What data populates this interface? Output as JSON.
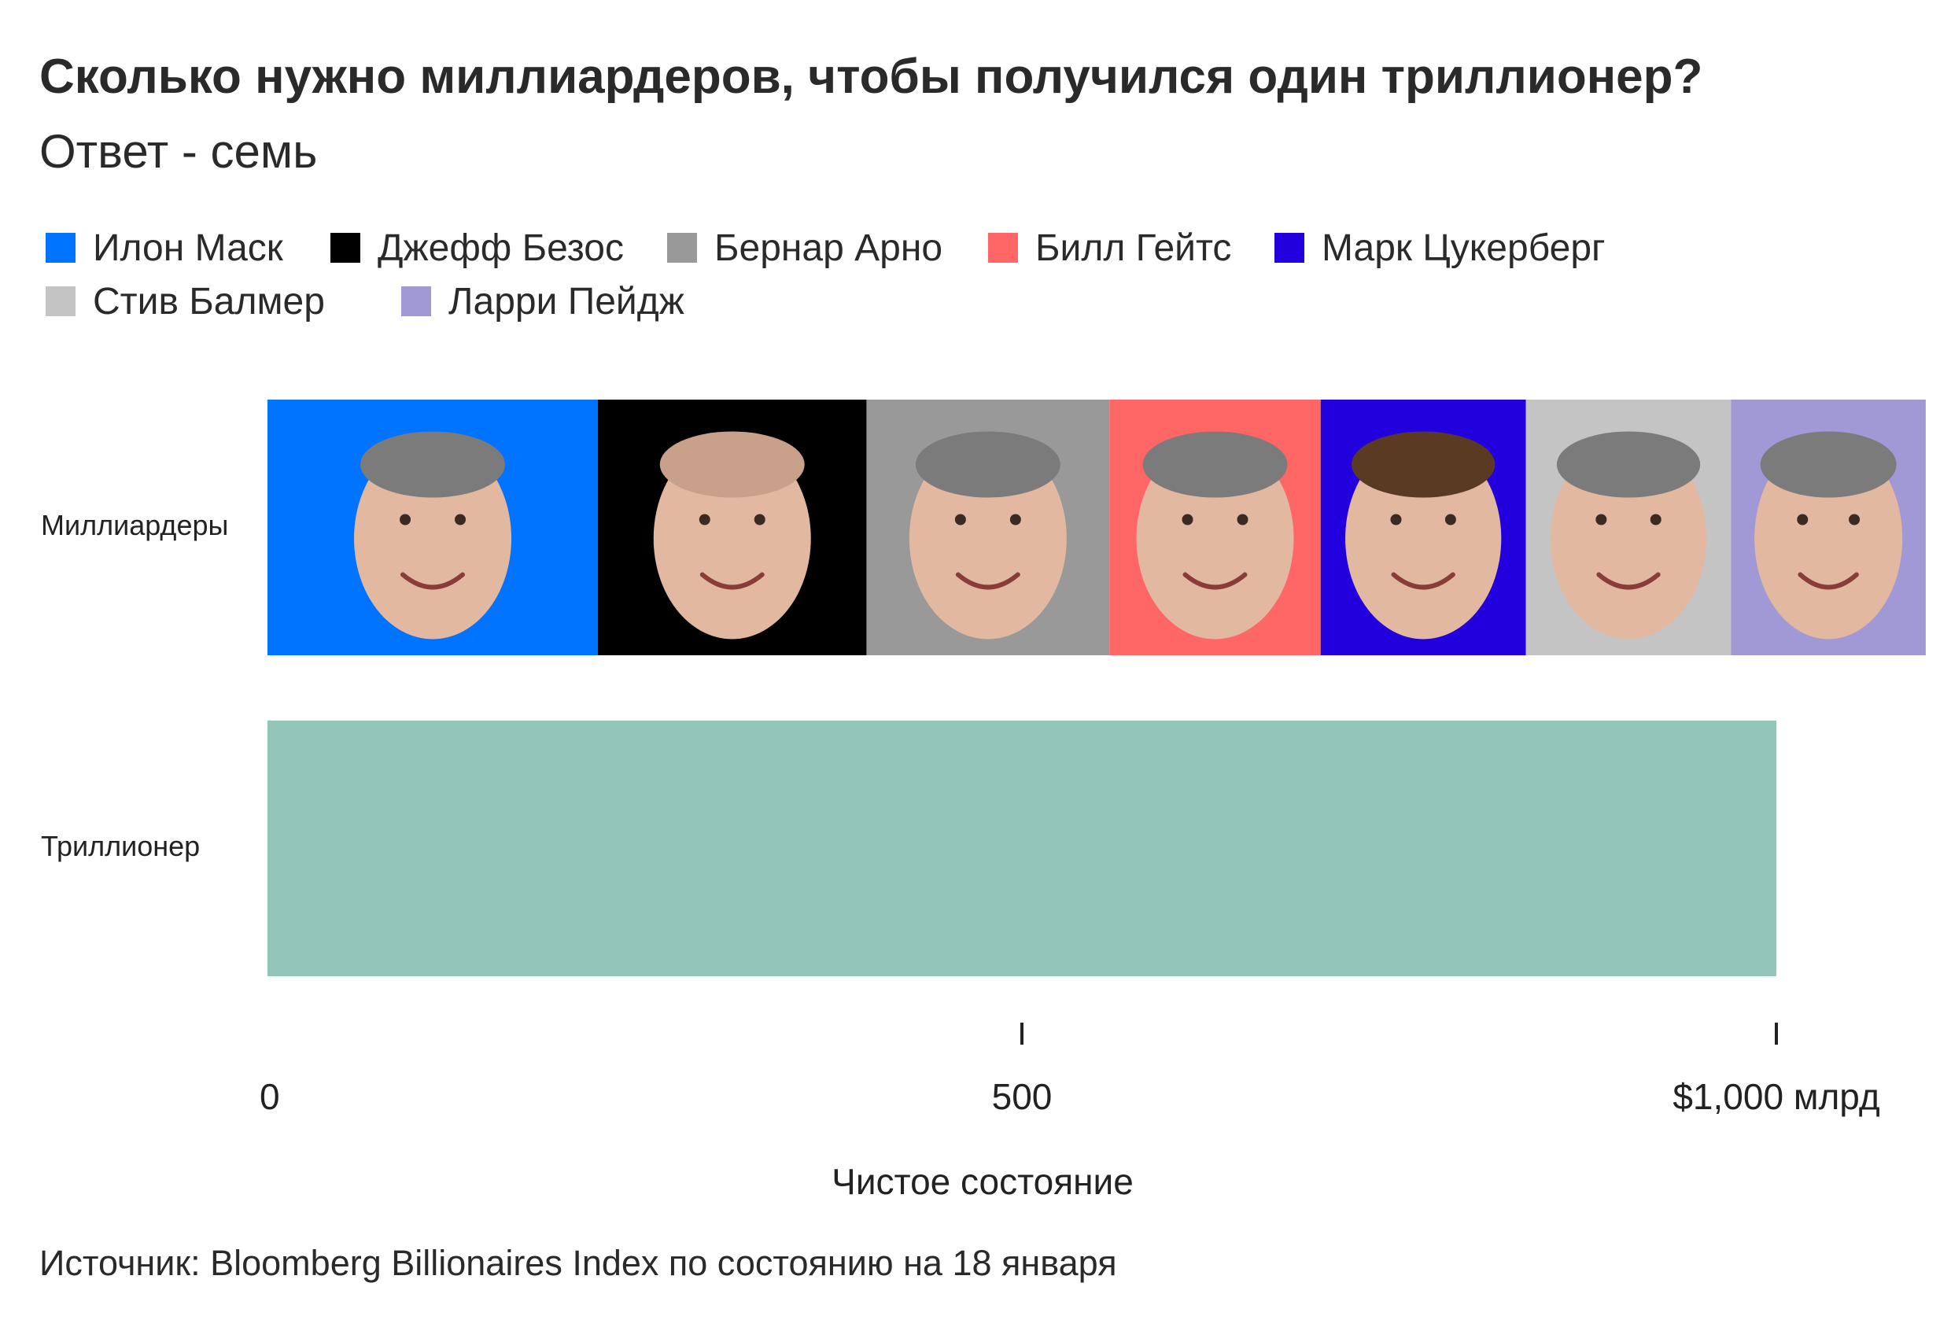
{
  "title": "Сколько нужно миллиардеров, чтобы получился один триллионер?",
  "subtitle": "Ответ - семь",
  "source": "Источник: Bloomberg Billionaires Index по состоянию на 18 января",
  "chart_data": {
    "type": "bar",
    "orientation": "horizontal",
    "stacked": true,
    "categories": [
      "Миллиардеры",
      "Триллионер"
    ],
    "series": [
      {
        "name": "Илон Маск",
        "color": "#0073ff",
        "values": [
          219,
          0
        ]
      },
      {
        "name": "Джефф Безос",
        "color": "#000000",
        "values": [
          178,
          0
        ]
      },
      {
        "name": "Бернар Арно",
        "color": "#999999",
        "values": [
          161,
          0
        ]
      },
      {
        "name": "Билл Гейтс",
        "color": "#ff6666",
        "values": [
          140,
          0
        ]
      },
      {
        "name": "Марк Цукерберг",
        "color": "#2200dd",
        "values": [
          136,
          0
        ]
      },
      {
        "name": "Стив Балмер",
        "color": "#c4c4c4",
        "values": [
          136,
          0
        ]
      },
      {
        "name": "Ларри Пейдж",
        "color": "#a199d6",
        "values": [
          129,
          0
        ]
      },
      {
        "name": "",
        "color": "#93c6b8",
        "values": [
          0,
          1000
        ]
      }
    ],
    "xlabel": "Чистое состояние",
    "ylabel": "",
    "xlim": [
      0,
      1000
    ],
    "x_ticks": [
      {
        "value": 0,
        "label": "0"
      },
      {
        "value": 500,
        "label": "500"
      },
      {
        "value": 1000,
        "label": "$1,000 млрд"
      }
    ],
    "grid": false,
    "legend_position": "top",
    "legend_items": [
      "Илон Маск",
      "Джефф Безос",
      "Бернар Арно",
      "Билл Гейтс",
      "Марк Цукерберг",
      "Стив Балмер",
      "Ларри Пейдж"
    ],
    "icons": [
      "musk-face-icon",
      "bezos-face-icon",
      "arnault-face-icon",
      "gates-face-icon",
      "zuckerberg-face-icon",
      "ballmer-face-icon",
      "page-face-icon"
    ]
  }
}
